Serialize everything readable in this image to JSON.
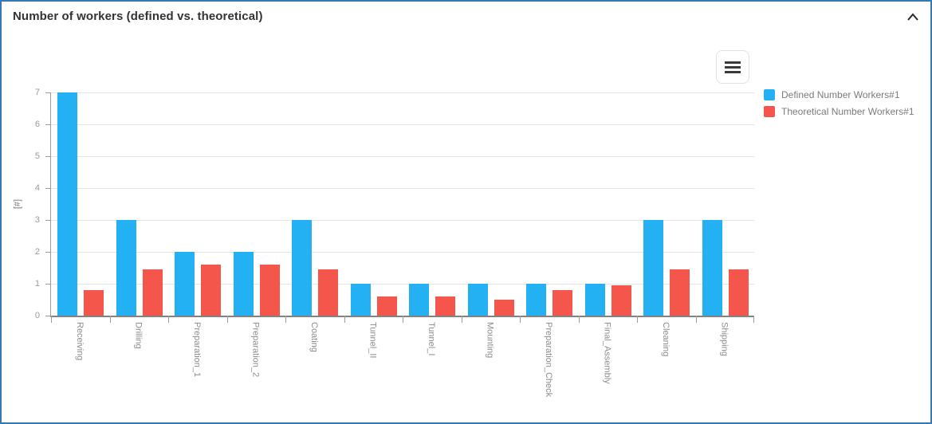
{
  "panel": {
    "title": "Number of workers (defined vs. theoretical)",
    "collapse_icon": "chevron-up",
    "border_color": "#3478b6"
  },
  "toolbar": {
    "menu_icon": "hamburger-menu"
  },
  "chart_data": {
    "type": "bar",
    "title": "Number of workers (defined vs. theoretical)",
    "categories": [
      "Receiving",
      "Drilling",
      "Preparation_1",
      "Preparation_2",
      "Coating",
      "Tunnel_II",
      "Tunnel_I",
      "Mounting",
      "Preparation_Check",
      "Final_Assembly",
      "Cleaning",
      "Shipping"
    ],
    "series": [
      {
        "name": "Defined Number Workers#1",
        "color": "#23b1f3",
        "values": [
          7,
          3,
          2,
          2,
          3,
          1,
          1,
          1,
          1,
          1,
          3,
          3
        ]
      },
      {
        "name": "Theoretical Number Workers#1",
        "color": "#f4564c",
        "values": [
          0.8,
          1.45,
          1.6,
          1.6,
          1.45,
          0.6,
          0.6,
          0.5,
          0.8,
          0.95,
          1.45,
          1.45
        ]
      }
    ],
    "xlabel": "",
    "ylabel": "[#]",
    "ylim": [
      0,
      7
    ],
    "ytick_step": 1,
    "yticks": [
      "0",
      "1",
      "2",
      "3",
      "4",
      "5",
      "6",
      "7"
    ],
    "grid": true,
    "legend_position": "right"
  }
}
